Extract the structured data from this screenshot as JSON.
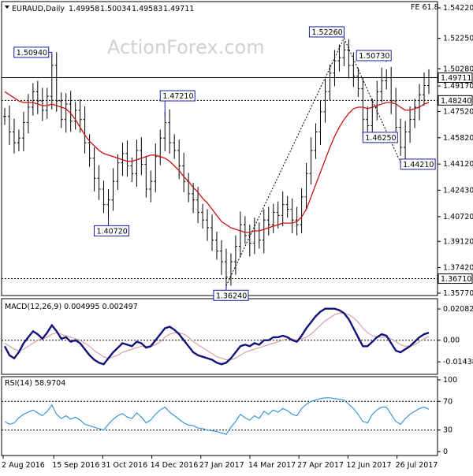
{
  "colors": {
    "price_bars": "#000000",
    "moving_average": "#cc1111",
    "macd_line": "#12127a",
    "macd_signal": "#d8a0a0",
    "rsi_line": "#2b8fd0",
    "annotation_border": "#1a1aa0",
    "watermark": "#d0d0d0"
  },
  "chart_data": [
    {
      "type": "candlestick",
      "title": "EURAUD,Daily",
      "ohlc_header": {
        "open": "1.49958",
        "high": "1.50034",
        "low": "1.49583",
        "close": "1.49711"
      },
      "watermark": "ActionForex.com",
      "fib_label": "FE 61.8",
      "ylim": [
        1.3577,
        1.5422
      ],
      "y_ticks": [
        "1.54220",
        "1.52250",
        "1.50280",
        "1.49170",
        "1.47520",
        "1.45820",
        "1.44120",
        "1.42430",
        "1.40720",
        "1.39120",
        "1.37420",
        "1.35770"
      ],
      "x_ticks": [
        "2 Aug 2016",
        "15 Sep 2016",
        "31 Oct 2016",
        "14 Dec 2016",
        "27 Jan 2017",
        "14 Mar 2017",
        "27 Apr 2017",
        "12 Jun 2017",
        "26 Jul 2017"
      ],
      "horizontal_levels": [
        {
          "value": 1.4971,
          "label": "1.49711",
          "style": "solid"
        },
        {
          "value": 1.4824,
          "label": "1.48240",
          "style": "dashed"
        },
        {
          "value": 1.3671,
          "label": "1.36710",
          "style": "dashed"
        }
      ],
      "annotations": [
        {
          "label": "1.50940",
          "value": 1.5094,
          "bar_index": 10
        },
        {
          "label": "1.47210",
          "value": 1.4721,
          "bar_index": 34
        },
        {
          "label": "1.40720",
          "value": 1.4072,
          "bar_index": 22
        },
        {
          "label": "1.36240",
          "value": 1.3624,
          "bar_index": 47
        },
        {
          "label": "1.52260",
          "value": 1.5226,
          "bar_index": 72
        },
        {
          "label": "1.50730",
          "value": 1.5073,
          "bar_index": 81
        },
        {
          "label": "1.46250",
          "value": 1.4625,
          "bar_index": 76
        },
        {
          "label": "1.44210",
          "value": 1.4421,
          "bar_index": 84
        }
      ],
      "projection_lines": [
        {
          "from": [
            47,
            1.3624
          ],
          "to": [
            72,
            1.5226
          ]
        },
        {
          "from": [
            72,
            1.5226
          ],
          "to": [
            84,
            1.4421
          ]
        }
      ],
      "close_series": [
        1.472,
        1.462,
        1.455,
        1.458,
        1.468,
        1.478,
        1.488,
        1.482,
        1.476,
        1.485,
        1.505,
        1.482,
        1.47,
        1.48,
        1.469,
        1.476,
        1.47,
        1.455,
        1.445,
        1.432,
        1.425,
        1.415,
        1.418,
        1.43,
        1.442,
        1.448,
        1.44,
        1.435,
        1.45,
        1.441,
        1.425,
        1.43,
        1.446,
        1.458,
        1.468,
        1.455,
        1.45,
        1.44,
        1.43,
        1.422,
        1.418,
        1.41,
        1.405,
        1.4,
        1.392,
        1.385,
        1.378,
        1.368,
        1.378,
        1.388,
        1.402,
        1.395,
        1.39,
        1.398,
        1.392,
        1.405,
        1.402,
        1.41,
        1.408,
        1.415,
        1.412,
        1.405,
        1.402,
        1.42,
        1.435,
        1.45,
        1.462,
        1.475,
        1.488,
        1.5,
        1.508,
        1.51,
        1.515,
        1.505,
        1.498,
        1.49,
        1.47,
        1.466,
        1.478,
        1.488,
        1.495,
        1.497,
        1.482,
        1.465,
        1.452,
        1.462,
        1.47,
        1.478,
        1.486,
        1.492,
        1.4971
      ],
      "moving_average_series": [
        1.488,
        1.486,
        1.484,
        1.482,
        1.481,
        1.481,
        1.481,
        1.48,
        1.479,
        1.479,
        1.48,
        1.479,
        1.478,
        1.477,
        1.474,
        1.47,
        1.465,
        1.46,
        1.456,
        1.453,
        1.45,
        1.448,
        1.447,
        1.446,
        1.445,
        1.444,
        1.443,
        1.443,
        1.444,
        1.445,
        1.446,
        1.447,
        1.447,
        1.446,
        1.445,
        1.443,
        1.44,
        1.437,
        1.433,
        1.43,
        1.426,
        1.423,
        1.419,
        1.416,
        1.412,
        1.408,
        1.404,
        1.402,
        1.4,
        1.399,
        1.398,
        1.397,
        1.397,
        1.398,
        1.398,
        1.399,
        1.4,
        1.401,
        1.402,
        1.403,
        1.403,
        1.403,
        1.404,
        1.407,
        1.412,
        1.42,
        1.428,
        1.436,
        1.444,
        1.452,
        1.459,
        1.465,
        1.47,
        1.474,
        1.477,
        1.478,
        1.478,
        1.477,
        1.478,
        1.479,
        1.48,
        1.481,
        1.481,
        1.48,
        1.478,
        1.476,
        1.476,
        1.477,
        1.478,
        1.48,
        1.481
      ]
    },
    {
      "type": "line",
      "title": "MACD(12,26,9) 0.004995 0.002497",
      "ylim": [
        -0.018,
        0.024
      ],
      "y_ticks": [
        "0.020827",
        "0.00",
        "-0.014386"
      ],
      "series": [
        {
          "values": [
            -0.004,
            -0.01,
            -0.012,
            -0.008,
            -0.002,
            0.002,
            0.006,
            0.004,
            0.001,
            0.005,
            0.01,
            0.006,
            0.001,
            0.002,
            -0.001,
            0.0,
            -0.002,
            -0.006,
            -0.01,
            -0.013,
            -0.015,
            -0.016,
            -0.012,
            -0.008,
            -0.005,
            -0.002,
            -0.003,
            -0.004,
            -0.001,
            -0.002,
            -0.005,
            -0.004,
            0.0,
            0.004,
            0.008,
            0.009,
            0.007,
            0.004,
            0.0,
            -0.004,
            -0.008,
            -0.01,
            -0.011,
            -0.012,
            -0.013,
            -0.015,
            -0.016,
            -0.015,
            -0.012,
            -0.008,
            -0.004,
            -0.003,
            -0.004,
            -0.002,
            -0.003,
            0.0,
            0.0,
            0.002,
            0.002,
            0.003,
            0.002,
            0.0,
            -0.001,
            0.003,
            0.008,
            0.012,
            0.016,
            0.019,
            0.021,
            0.021,
            0.021,
            0.02,
            0.018,
            0.014,
            0.008,
            0.002,
            -0.004,
            -0.004,
            -0.001,
            0.002,
            0.004,
            0.003,
            -0.002,
            -0.007,
            -0.008,
            -0.006,
            -0.004,
            -0.001,
            0.002,
            0.004,
            0.004995
          ]
        },
        {
          "values": [
            -0.002,
            -0.004,
            -0.006,
            -0.007,
            -0.006,
            -0.004,
            -0.002,
            0.0,
            0.001,
            0.002,
            0.004,
            0.005,
            0.004,
            0.003,
            0.002,
            0.001,
            0.0,
            -0.002,
            -0.004,
            -0.007,
            -0.009,
            -0.011,
            -0.012,
            -0.011,
            -0.01,
            -0.008,
            -0.007,
            -0.006,
            -0.005,
            -0.004,
            -0.004,
            -0.004,
            -0.003,
            -0.001,
            0.002,
            0.004,
            0.005,
            0.005,
            0.004,
            0.002,
            -0.001,
            -0.003,
            -0.005,
            -0.007,
            -0.009,
            -0.011,
            -0.012,
            -0.013,
            -0.013,
            -0.012,
            -0.01,
            -0.008,
            -0.007,
            -0.006,
            -0.005,
            -0.004,
            -0.003,
            -0.002,
            -0.001,
            0.0,
            0.001,
            0.001,
            0.0,
            0.001,
            0.002,
            0.004,
            0.007,
            0.01,
            0.013,
            0.015,
            0.017,
            0.018,
            0.018,
            0.017,
            0.015,
            0.012,
            0.008,
            0.005,
            0.003,
            0.002,
            0.002,
            0.002,
            0.001,
            -0.001,
            -0.003,
            -0.004,
            -0.004,
            -0.003,
            -0.001,
            0.001,
            0.002497
          ]
        }
      ]
    },
    {
      "type": "line",
      "title": "RSI(14) 58.9704",
      "ylim": [
        0,
        100
      ],
      "y_ticks": [
        "100",
        "70",
        "30",
        "0"
      ],
      "reference_levels": [
        70,
        30
      ],
      "series": [
        {
          "values": [
            42,
            38,
            40,
            47,
            52,
            55,
            58,
            54,
            50,
            56,
            65,
            52,
            46,
            50,
            45,
            48,
            44,
            38,
            36,
            34,
            32,
            30,
            38,
            45,
            50,
            53,
            48,
            46,
            54,
            48,
            40,
            44,
            52,
            58,
            62,
            55,
            50,
            45,
            40,
            37,
            36,
            33,
            32,
            30,
            29,
            28,
            26,
            24,
            34,
            42,
            52,
            47,
            44,
            50,
            46,
            56,
            52,
            58,
            55,
            60,
            57,
            52,
            50,
            60,
            66,
            70,
            72,
            74,
            75,
            75,
            74,
            73,
            72,
            66,
            60,
            52,
            42,
            40,
            52,
            58,
            62,
            62,
            52,
            42,
            38,
            46,
            52,
            56,
            60,
            62,
            58.97
          ]
        }
      ]
    }
  ]
}
